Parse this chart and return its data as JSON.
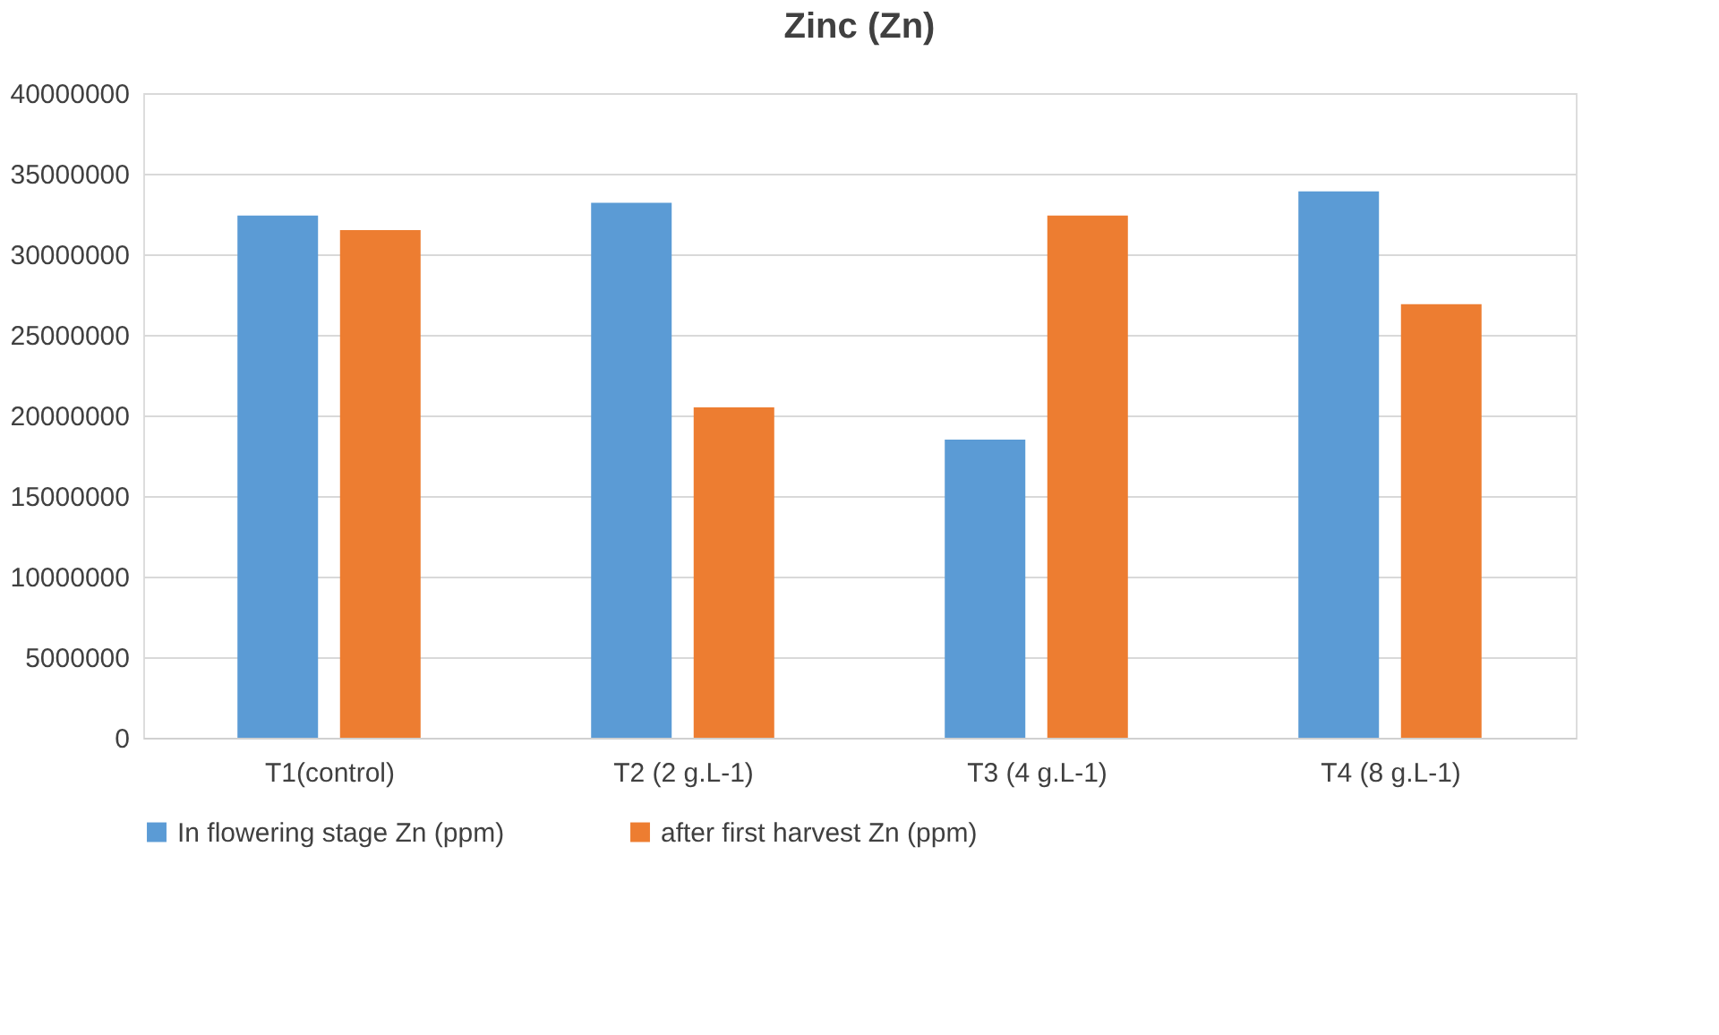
{
  "chart_data": {
    "type": "bar",
    "title": "Zinc (Zn)",
    "categories": [
      "T1(control)",
      "T2 (2 g.L-1)",
      "T3 (4 g.L-1)",
      "T4 (8 g.L-1)"
    ],
    "series": [
      {
        "name": "In flowering stage   Zn (ppm)",
        "color": "#5b9bd5",
        "values": [
          32400000,
          33200000,
          18500000,
          33900000
        ]
      },
      {
        "name": "after first harvest Zn (ppm)",
        "color": "#ed7d31",
        "values": [
          31500000,
          20500000,
          32400000,
          26900000
        ]
      }
    ],
    "ylim": [
      0,
      40000000
    ],
    "yticks": [
      0,
      5000000,
      10000000,
      15000000,
      20000000,
      25000000,
      30000000,
      35000000,
      40000000
    ],
    "grid": "y",
    "legend": "bottom"
  }
}
